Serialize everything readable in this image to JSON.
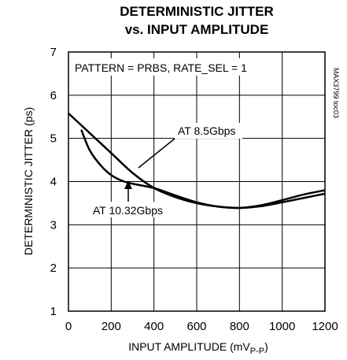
{
  "chart_data": {
    "type": "line",
    "title_line1": "DETERMINISTIC JITTER",
    "title_line2": "vs. INPUT AMPLITUDE",
    "xlabel_main": "INPUT AMPLITUDE (mV",
    "xlabel_sub": "P-P",
    "xlabel_close": ")",
    "ylabel": "DETERMINISTIC JITTER (ps)",
    "xlim": [
      0,
      1200
    ],
    "ylim": [
      1,
      7
    ],
    "x_ticks": [
      0,
      200,
      400,
      600,
      800,
      1000,
      1200
    ],
    "y_ticks": [
      1,
      2,
      3,
      4,
      5,
      6,
      7
    ],
    "grid": true,
    "annotation_box": "PATTERN = PRBS, RATE_SEL = 1",
    "side_note": "MAX3799 toc03",
    "series": [
      {
        "name": "AT 8.5Gbps",
        "x": [
          0,
          100,
          200,
          300,
          400,
          500,
          600,
          700,
          800,
          900,
          1000,
          1100,
          1200
        ],
        "y": [
          5.58,
          5.12,
          4.66,
          4.2,
          3.85,
          3.64,
          3.5,
          3.42,
          3.39,
          3.43,
          3.52,
          3.62,
          3.72
        ]
      },
      {
        "name": "AT 10.32Gbps",
        "x": [
          60,
          100,
          150,
          200,
          250,
          300,
          400,
          500,
          600,
          700,
          800,
          900,
          1000,
          1100,
          1200
        ],
        "y": [
          5.2,
          4.72,
          4.38,
          4.15,
          4.02,
          3.95,
          3.85,
          3.68,
          3.52,
          3.42,
          3.39,
          3.45,
          3.57,
          3.7,
          3.8
        ]
      }
    ]
  }
}
